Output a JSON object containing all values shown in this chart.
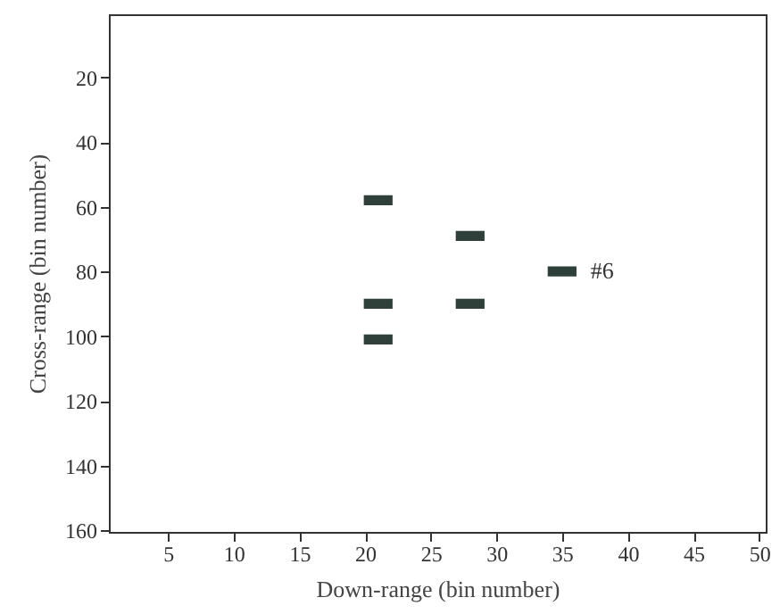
{
  "chart_data": {
    "type": "scatter",
    "xlabel": "Down-range (bin number)",
    "ylabel": "Cross-range (bin number)",
    "x": [
      21,
      28,
      35,
      21,
      28,
      21
    ],
    "series": [
      {
        "color": "#2f3f3a",
        "values": [
          58,
          69,
          80,
          90,
          90,
          101
        ]
      }
    ],
    "xlim": [
      0.5,
      50.5
    ],
    "xticks": [
      5,
      10,
      15,
      20,
      25,
      30,
      35,
      40,
      45,
      50
    ],
    "ylim": [
      160.5,
      0.5
    ],
    "yticks": [
      20,
      40,
      60,
      80,
      100,
      120,
      140,
      160
    ],
    "annotations": [
      {
        "text": "#6",
        "x": 35,
        "y": 80
      }
    ],
    "marker": "square",
    "grid": false
  }
}
